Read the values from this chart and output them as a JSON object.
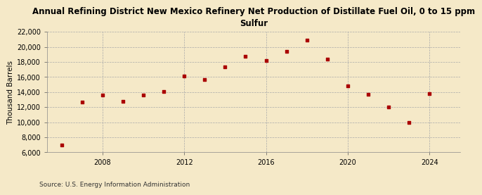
{
  "title": "Annual Refining District New Mexico Refinery Net Production of Distillate Fuel Oil, 0 to 15 ppm\nSulfur",
  "ylabel": "Thousand Barrels",
  "source": "Source: U.S. Energy Information Administration",
  "background_color": "#f5e9c8",
  "plot_bg_color": "#f5e9c8",
  "marker_color": "#aa0000",
  "years": [
    2006,
    2007,
    2008,
    2009,
    2010,
    2011,
    2012,
    2013,
    2014,
    2015,
    2016,
    2017,
    2018,
    2019,
    2020,
    2021,
    2022,
    2023,
    2024
  ],
  "values": [
    7000,
    12700,
    13600,
    12800,
    13600,
    14100,
    16100,
    15700,
    17300,
    18700,
    18200,
    19400,
    20900,
    18400,
    14800,
    13700,
    12000,
    10000,
    13800
  ],
  "ylim": [
    6000,
    22000
  ],
  "yticks": [
    6000,
    8000,
    10000,
    12000,
    14000,
    16000,
    18000,
    20000,
    22000
  ],
  "xticks": [
    2008,
    2012,
    2016,
    2020,
    2024
  ],
  "xlim": [
    2005.3,
    2025.5
  ],
  "title_fontsize": 8.5,
  "label_fontsize": 7.5,
  "tick_fontsize": 7,
  "source_fontsize": 6.5
}
